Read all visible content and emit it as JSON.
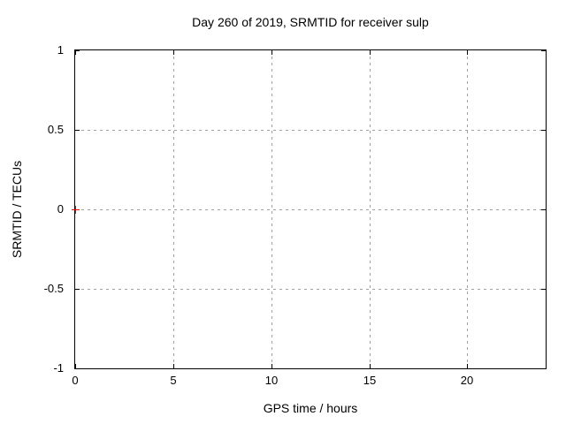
{
  "chart_data": {
    "type": "scatter",
    "title": "Day 260 of 2019, SRMTID for receiver sulp",
    "xlabel": "GPS time / hours",
    "ylabel": "SRMTID / TECUs",
    "xlim": [
      0,
      24
    ],
    "ylim": [
      -1,
      1
    ],
    "x_ticks": [
      0,
      5,
      10,
      15,
      20
    ],
    "x_tick_labels": [
      "0",
      "5",
      "10",
      "15",
      "20"
    ],
    "y_ticks": [
      1,
      0.5,
      0,
      -0.5,
      -1
    ],
    "y_tick_labels": [
      "1",
      "0.5",
      "0",
      "-0.5",
      "-1"
    ],
    "grid": true,
    "legend": "none",
    "series": [
      {
        "name": "SRMTID",
        "marker": "plus",
        "color": "#ff0000",
        "points": [
          {
            "x": 0,
            "y": 0
          }
        ]
      }
    ],
    "colors": {
      "background": "#ffffff",
      "border": "#000000",
      "grid": "#a0a0a0",
      "text": "#000000",
      "marker": "#ff0000"
    }
  }
}
